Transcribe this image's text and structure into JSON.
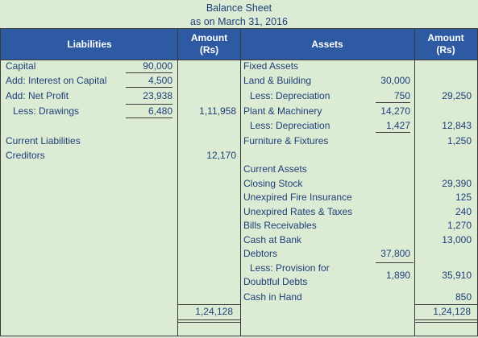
{
  "title_line1": "Balance Sheet",
  "title_line2": "as on March 31, 2016",
  "headers": {
    "liabilities": "Liabilities",
    "amount_left": "Amount (Rs)",
    "assets": "Assets",
    "amount_right": "Amount (Rs)"
  },
  "liabilities": {
    "capital": {
      "label": "Capital",
      "value": "90,000"
    },
    "interest": {
      "label": "Add: Interest on Capital",
      "value": "4,500"
    },
    "net_profit": {
      "label": "Add: Net Profit",
      "value": "23,938"
    },
    "drawings": {
      "label": "Less: Drawings",
      "value": "6,480",
      "total": "1,11,958"
    },
    "current_liabilities": {
      "label": "Current Liabilities"
    },
    "creditors": {
      "label": "Creditors",
      "total": "12,170"
    }
  },
  "assets": {
    "fixed_assets": "Fixed Assets",
    "land": {
      "label": "Land & Building",
      "value": "30,000"
    },
    "land_dep": {
      "label": "Less: Depreciation",
      "value": "750",
      "total": "29,250"
    },
    "plant": {
      "label": "Plant & Machinery",
      "value": "14,270"
    },
    "plant_dep": {
      "label": "Less: Depreciation",
      "value": "1,427",
      "total": "12,843"
    },
    "furniture": {
      "label": "Furniture & Fixtures",
      "total": "1,250"
    },
    "current_assets": "Current Assets",
    "closing_stock": {
      "label": "Closing Stock",
      "total": "29,390"
    },
    "fire_insurance": {
      "label": "Unexpired Fire Insurance",
      "total": "125"
    },
    "rates_taxes": {
      "label": "Unexpired Rates & Taxes",
      "total": "240"
    },
    "bills": {
      "label": "Bills Receivables",
      "total": "1,270"
    },
    "cash_bank": {
      "label": "Cash at Bank",
      "total": "13,000"
    },
    "debtors": {
      "label": "Debtors",
      "value": "37,800"
    },
    "provision": {
      "label_line1": "Less: Provision for",
      "label_line2": "Doubtful Debts",
      "value": "1,890",
      "total": "35,910"
    },
    "cash_hand": {
      "label": "Cash in Hand",
      "total": "850"
    }
  },
  "totals": {
    "left": "1,24,128",
    "right": "1,24,128"
  }
}
